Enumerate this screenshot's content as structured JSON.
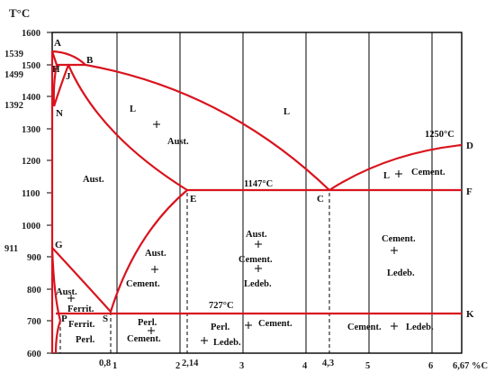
{
  "y_axis": {
    "title": "T°C",
    "ticks": [
      "1600",
      "1500",
      "1400",
      "1300",
      "1200",
      "1100",
      "1000",
      "900",
      "800",
      "700",
      "600"
    ]
  },
  "x_axis": {
    "ticks": [
      "0,8",
      "1",
      "2",
      "2,14",
      "3",
      "4",
      "4,3",
      "5",
      "6",
      "6,67 %C"
    ]
  },
  "temperature_labels": {
    "t1539": "1539",
    "t1499": "1499",
    "t1392": "1392",
    "t911": "911",
    "t1147": "1147°C",
    "t727": "727°C",
    "t1250": "1250°C"
  },
  "points": {
    "A": "A",
    "B": "B",
    "H": "H",
    "J": "J",
    "N": "N",
    "E": "E",
    "C": "C",
    "D": "D",
    "F": "F",
    "G": "G",
    "P": "P",
    "S": "S",
    "K": "K"
  },
  "regions": {
    "liquid_left": "L",
    "liquid_right": "L",
    "liquid_aust": "Aust.",
    "aust": "Aust.",
    "liquid_cement": "L",
    "liquid_cement_word": "Cement.",
    "aust_cement_1": "Aust.",
    "aust_cement_2": "Cement.",
    "aust_cem_led_1": "Aust.",
    "aust_cem_led_2": "Cement.",
    "aust_cem_led_3": "Ledeb.",
    "cem_led_1": "Cement.",
    "cem_led_2": "Ledeb.",
    "aust_ferrit_1": "Aust.",
    "aust_ferrit_2": "Ferrit.",
    "ferrit_perl_1": "Ferrit.",
    "ferrit_perl_2": "Perl.",
    "perl_cement_1": "Perl.",
    "perl_cement_2": "Cement.",
    "perl_led_1": "Perl.",
    "perl_led_2": "Cement.",
    "perl_led_3": "Ledeb.",
    "cement_ledeb_low_1": "Cement.",
    "cement_ledeb_low_2": "Ledeb."
  }
}
